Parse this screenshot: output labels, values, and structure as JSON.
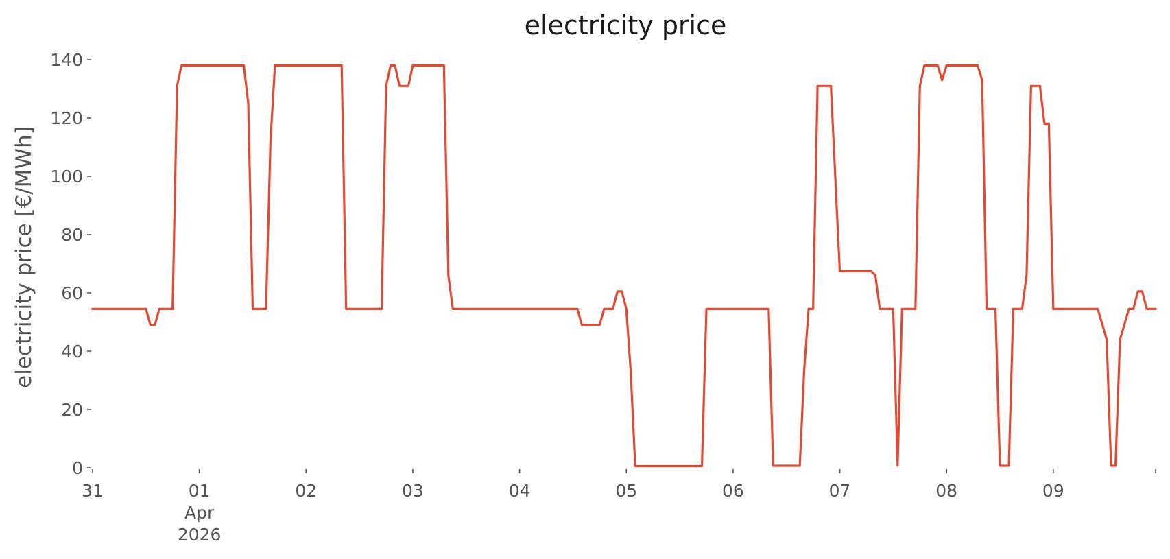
{
  "chart_data": {
    "type": "line",
    "title": "electricity price",
    "ylabel": "electricity price [€/MWh]",
    "xlabel": "",
    "ylim": [
      0,
      140
    ],
    "xlim_days": "2026-03-31 00:00 to 2026-04-09 23:00",
    "grid": false,
    "legend": "none",
    "colors": {
      "line": "#e24a33",
      "text": "#555555",
      "title": "#1a1a1a"
    },
    "y_ticks": [
      "0",
      "20",
      "40",
      "60",
      "80",
      "100",
      "120",
      "140"
    ],
    "x_ticks": [
      {
        "x": "2026-03-31",
        "label": "31"
      },
      {
        "x": "2026-04-01",
        "label": "01\nApr\n2026"
      },
      {
        "x": "2026-04-02",
        "label": "02"
      },
      {
        "x": "2026-04-03",
        "label": "03"
      },
      {
        "x": "2026-04-04",
        "label": "04"
      },
      {
        "x": "2026-04-05",
        "label": "05"
      },
      {
        "x": "2026-04-06",
        "label": "06"
      },
      {
        "x": "2026-04-07",
        "label": "07"
      },
      {
        "x": "2026-04-08",
        "label": "08"
      },
      {
        "x": "2026-04-09",
        "label": "09"
      }
    ],
    "series": [
      {
        "points": [
          [
            "2026-03-31 00:00",
            54.5
          ],
          [
            "2026-03-31 12:00",
            54.5
          ],
          [
            "2026-03-31 13:00",
            49
          ],
          [
            "2026-03-31 14:00",
            49
          ],
          [
            "2026-03-31 15:00",
            54.5
          ],
          [
            "2026-03-31 18:00",
            54.5
          ],
          [
            "2026-03-31 19:00",
            131
          ],
          [
            "2026-03-31 20:00",
            138
          ],
          [
            "2026-04-01 10:00",
            138
          ],
          [
            "2026-04-01 11:00",
            125
          ],
          [
            "2026-04-01 12:00",
            54.5
          ],
          [
            "2026-04-01 15:00",
            54.5
          ],
          [
            "2026-04-01 16:00",
            112
          ],
          [
            "2026-04-01 17:00",
            138
          ],
          [
            "2026-04-02 08:00",
            138
          ],
          [
            "2026-04-02 09:00",
            54.5
          ],
          [
            "2026-04-02 17:00",
            54.5
          ],
          [
            "2026-04-02 18:00",
            131
          ],
          [
            "2026-04-02 19:00",
            138
          ],
          [
            "2026-04-02 20:00",
            138
          ],
          [
            "2026-04-02 21:00",
            131
          ],
          [
            "2026-04-02 23:00",
            131
          ],
          [
            "2026-04-03 00:00",
            138
          ],
          [
            "2026-04-03 07:00",
            138
          ],
          [
            "2026-04-03 08:00",
            66
          ],
          [
            "2026-04-03 09:00",
            54.5
          ],
          [
            "2026-04-04 13:00",
            54.5
          ],
          [
            "2026-04-04 14:00",
            49
          ],
          [
            "2026-04-04 15:00",
            49
          ],
          [
            "2026-04-04 18:00",
            49
          ],
          [
            "2026-04-04 19:00",
            54.5
          ],
          [
            "2026-04-04 21:00",
            54.5
          ],
          [
            "2026-04-04 22:00",
            60.5
          ],
          [
            "2026-04-04 23:00",
            60.5
          ],
          [
            "2026-04-05 00:00",
            54.5
          ],
          [
            "2026-04-05 01:00",
            33
          ],
          [
            "2026-04-05 02:00",
            0.6
          ],
          [
            "2026-04-05 17:00",
            0.6
          ],
          [
            "2026-04-05 18:00",
            54.5
          ],
          [
            "2026-04-06 08:00",
            54.5
          ],
          [
            "2026-04-06 09:00",
            0.7
          ],
          [
            "2026-04-06 15:00",
            0.7
          ],
          [
            "2026-04-06 16:00",
            34
          ],
          [
            "2026-04-06 17:00",
            54.5
          ],
          [
            "2026-04-06 18:00",
            54.5
          ],
          [
            "2026-04-06 19:00",
            131
          ],
          [
            "2026-04-06 22:00",
            131
          ],
          [
            "2026-04-07 00:00",
            67.5
          ],
          [
            "2026-04-07 07:00",
            67.5
          ],
          [
            "2026-04-07 08:00",
            66
          ],
          [
            "2026-04-07 09:00",
            54.5
          ],
          [
            "2026-04-07 12:00",
            54.5
          ],
          [
            "2026-04-07 13:00",
            0.7
          ],
          [
            "2026-04-07 14:00",
            54.5
          ],
          [
            "2026-04-07 17:00",
            54.5
          ],
          [
            "2026-04-07 18:00",
            131
          ],
          [
            "2026-04-07 19:00",
            138
          ],
          [
            "2026-04-07 22:00",
            138
          ],
          [
            "2026-04-07 23:00",
            133
          ],
          [
            "2026-04-08 00:00",
            138
          ],
          [
            "2026-04-08 07:00",
            138
          ],
          [
            "2026-04-08 08:00",
            133
          ],
          [
            "2026-04-08 09:00",
            54.5
          ],
          [
            "2026-04-08 10:00",
            54.5
          ],
          [
            "2026-04-08 11:00",
            54.5
          ],
          [
            "2026-04-08 12:00",
            0.7
          ],
          [
            "2026-04-08 14:00",
            0.7
          ],
          [
            "2026-04-08 15:00",
            54.5
          ],
          [
            "2026-04-08 17:00",
            54.5
          ],
          [
            "2026-04-08 18:00",
            66
          ],
          [
            "2026-04-08 19:00",
            131
          ],
          [
            "2026-04-08 21:00",
            131
          ],
          [
            "2026-04-08 22:00",
            118
          ],
          [
            "2026-04-08 23:00",
            118
          ],
          [
            "2026-04-09 00:00",
            54.5
          ],
          [
            "2026-04-09 10:00",
            54.5
          ],
          [
            "2026-04-09 12:00",
            44
          ],
          [
            "2026-04-09 13:00",
            0.7
          ],
          [
            "2026-04-09 14:00",
            0.7
          ],
          [
            "2026-04-09 15:00",
            44
          ],
          [
            "2026-04-09 17:00",
            54.5
          ],
          [
            "2026-04-09 18:00",
            54.5
          ],
          [
            "2026-04-09 19:00",
            60.5
          ],
          [
            "2026-04-09 20:00",
            60.5
          ],
          [
            "2026-04-09 21:00",
            54.5
          ],
          [
            "2026-04-09 23:00",
            54.5
          ]
        ]
      }
    ]
  }
}
